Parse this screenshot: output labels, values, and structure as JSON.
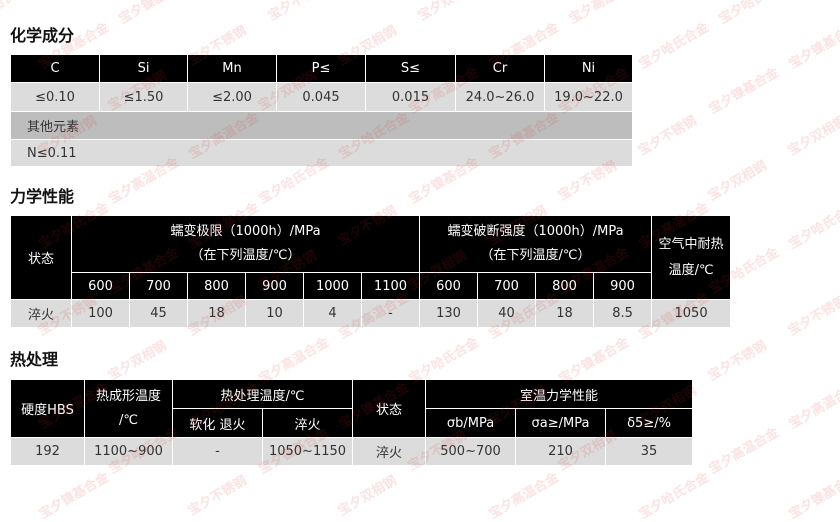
{
  "chemical": {
    "title": "化学成分",
    "headers": [
      "C",
      "Si",
      "Mn",
      "P≤",
      "S≤",
      "Cr",
      "Ni"
    ],
    "values": [
      "≤0.10",
      "≤1.50",
      "≤2.00",
      "0.045",
      "0.015",
      "24.0~26.0",
      "19.0~22.0"
    ],
    "other_label": "其他元素",
    "other_value": "N≤0.11"
  },
  "mechanical": {
    "title": "力学性能",
    "state_header": "状态",
    "creep_limit_header": "蠕变极限（1000h）/MPa",
    "creep_limit_sub": "（在下列温度/℃）",
    "rupture_header": "蠕变破断强度（1000h）/MPa",
    "rupture_sub": "（在下列温度/℃）",
    "air_header_1": "空气中耐热",
    "air_header_2": "温度/℃",
    "creep_temps": [
      "600",
      "700",
      "800",
      "900",
      "1000",
      "1100"
    ],
    "rupture_temps": [
      "600",
      "700",
      "800",
      "900"
    ],
    "row": {
      "state": "淬火",
      "creep": [
        "100",
        "45",
        "18",
        "10",
        "4",
        "-"
      ],
      "rupture": [
        "130",
        "40",
        "18",
        "8.5"
      ],
      "air": "1050"
    }
  },
  "heat": {
    "title": "热处理",
    "hardness_header": "硬度HBS",
    "forming_header_1": "热成形温度",
    "forming_header_2": "/℃",
    "treat_header": "热处理温度/℃",
    "soft_header": "软化 退火",
    "quench_header": "淬火",
    "state_header": "状态",
    "room_header": "室温力学性能",
    "room_cols": [
      "σb/MPa",
      "σa≥/MPa",
      "δ5≥/%"
    ],
    "row": [
      "192",
      "1100~900",
      "-",
      "1050~1150",
      "淬火",
      "500~700",
      "210",
      "35"
    ]
  },
  "watermarks": [
    "宝夕哈氏合金",
    "宝夕镍基合金",
    "宝夕不锈钢",
    "宝夕双相钢",
    "宝夕高温合金"
  ]
}
